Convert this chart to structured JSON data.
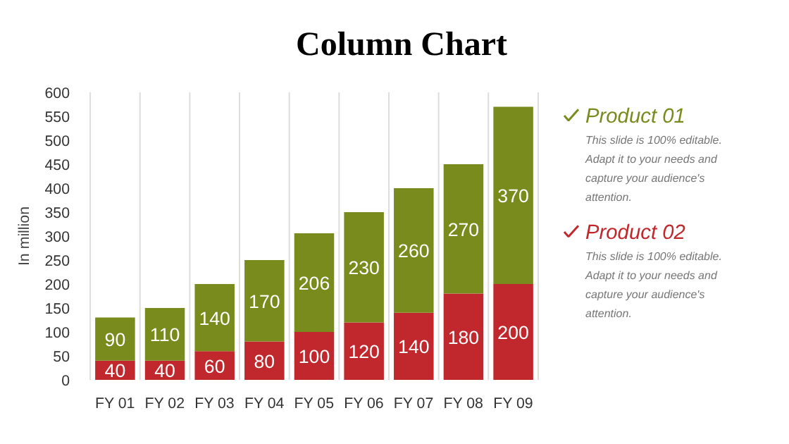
{
  "chart_data": {
    "type": "bar",
    "title": "Column Chart",
    "ylabel": "In million",
    "categories": [
      "FY 01",
      "FY 02",
      "FY 03",
      "FY 04",
      "FY 05",
      "FY 06",
      "FY 07",
      "FY 08",
      "FY 09"
    ],
    "series": [
      {
        "name": "Product 02",
        "color": "#c0282d",
        "values": [
          40,
          40,
          60,
          80,
          100,
          120,
          140,
          180,
          200
        ]
      },
      {
        "name": "Product 01",
        "color": "#7a8b1e",
        "values": [
          90,
          110,
          140,
          170,
          206,
          230,
          260,
          270,
          370
        ]
      }
    ],
    "stacked": true,
    "data_labels": true,
    "grid": "x",
    "legend": "right",
    "ylim": [
      0,
      600
    ],
    "yticks": [
      0,
      50,
      100,
      150,
      200,
      250,
      300,
      350,
      400,
      450,
      500,
      550,
      600
    ],
    "annotations": [
      "This slide is 100% editable. Adapt it to your needs and capture your audience's attention.",
      "This slide is 100% editable. Adapt it to your needs and capture your audience's attention."
    ]
  }
}
